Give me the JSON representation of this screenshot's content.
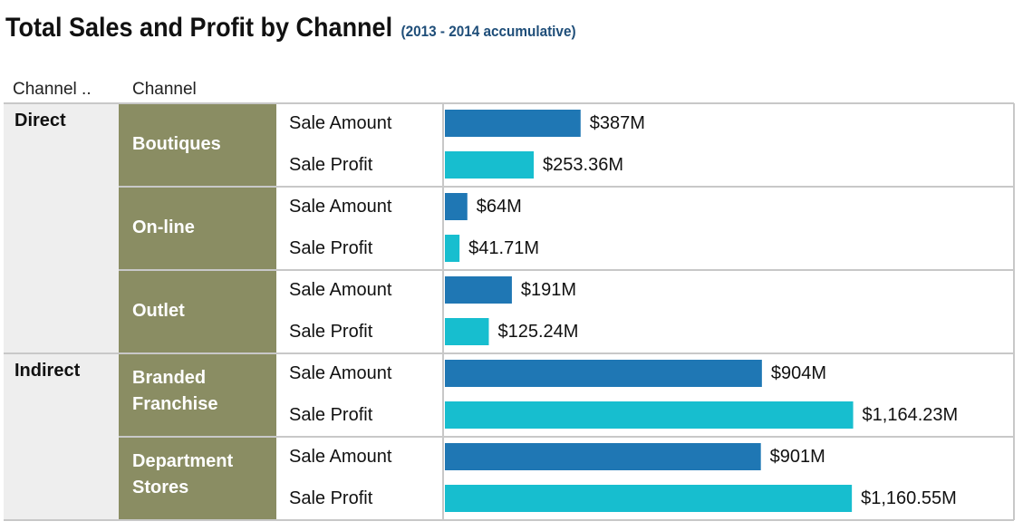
{
  "title": "Total Sales and Profit by Channel",
  "subtitle": "(2013 - 2014 accumulative)",
  "headers": {
    "group": "Channel ..",
    "channel": "Channel"
  },
  "colors": {
    "amount": "#1f77b4",
    "profit": "#17becf",
    "channel_cell": "#8a8d63",
    "group_cell": "#eeeeee",
    "measure_cell": "#ffffff"
  },
  "chart_data": {
    "type": "bar",
    "orientation": "horizontal",
    "title": "Total Sales and Profit by Channel",
    "subtitle": "(2013 - 2014 accumulative)",
    "measures": [
      "Sale Amount",
      "Sale Profit"
    ],
    "groups": [
      {
        "name": "Direct",
        "channels": [
          {
            "name": "Boutiques",
            "label_lines": [
              "Boutiques"
            ],
            "rows": [
              {
                "measure": "Sale Amount",
                "value": 387,
                "label": "$387M"
              },
              {
                "measure": "Sale Profit",
                "value": 253.36,
                "label": "$253.36M"
              }
            ]
          },
          {
            "name": "On-line",
            "label_lines": [
              "On-line"
            ],
            "rows": [
              {
                "measure": "Sale Amount",
                "value": 64,
                "label": "$64M"
              },
              {
                "measure": "Sale Profit",
                "value": 41.71,
                "label": "$41.71M"
              }
            ]
          },
          {
            "name": "Outlet",
            "label_lines": [
              "Outlet"
            ],
            "rows": [
              {
                "measure": "Sale Amount",
                "value": 191,
                "label": "$191M"
              },
              {
                "measure": "Sale Profit",
                "value": 125.24,
                "label": "$125.24M"
              }
            ]
          }
        ]
      },
      {
        "name": "Indirect",
        "channels": [
          {
            "name": "Branded Franchise",
            "label_lines": [
              "Branded",
              "Franchise"
            ],
            "rows": [
              {
                "measure": "Sale Amount",
                "value": 904,
                "label": "$904M"
              },
              {
                "measure": "Sale Profit",
                "value": 1164.23,
                "label": "$1,164.23M"
              }
            ]
          },
          {
            "name": "Department Stores",
            "label_lines": [
              "Department",
              "Stores"
            ],
            "rows": [
              {
                "measure": "Sale Amount",
                "value": 901,
                "label": "$901M"
              },
              {
                "measure": "Sale Profit",
                "value": 1160.55,
                "label": "$1,160.55M"
              }
            ]
          }
        ]
      }
    ]
  }
}
